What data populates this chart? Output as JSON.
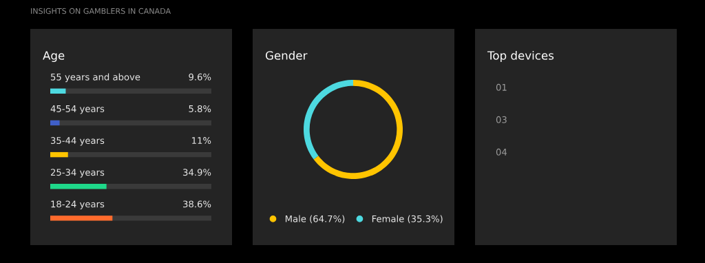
{
  "chart_data": [
    {
      "type": "bar",
      "orientation": "horizontal",
      "title": "Age",
      "annotations": [
        "INSIGHTS ON GAMBLERS IN CANADA"
      ],
      "categories": [
        "55 years and above",
        "45-54 years",
        "35-44 years",
        "25-34 years",
        "18-24 years"
      ],
      "values": [
        9.6,
        5.8,
        11,
        34.9,
        38.6
      ],
      "colors": [
        "#4dd9e0",
        "#3f5fc8",
        "#ffc400",
        "#1ed98a",
        "#ff6b2c"
      ],
      "value_labels": [
        "9.6%",
        "5.8%",
        "11%",
        "34.9%",
        "38.6%"
      ],
      "xlim": [
        0,
        100
      ],
      "tick_labels": false
    },
    {
      "type": "donut",
      "title": "Gender",
      "categories": [
        "Male (64.7%)",
        "Female (35.3%)"
      ],
      "values": [
        64.7,
        35.3
      ],
      "colors": [
        "#ffc400",
        "#4dd9e0"
      ],
      "legend": "bottom"
    },
    {
      "type": "other",
      "title": "Top devices",
      "annotations": [
        "01",
        "03",
        "04"
      ]
    }
  ]
}
